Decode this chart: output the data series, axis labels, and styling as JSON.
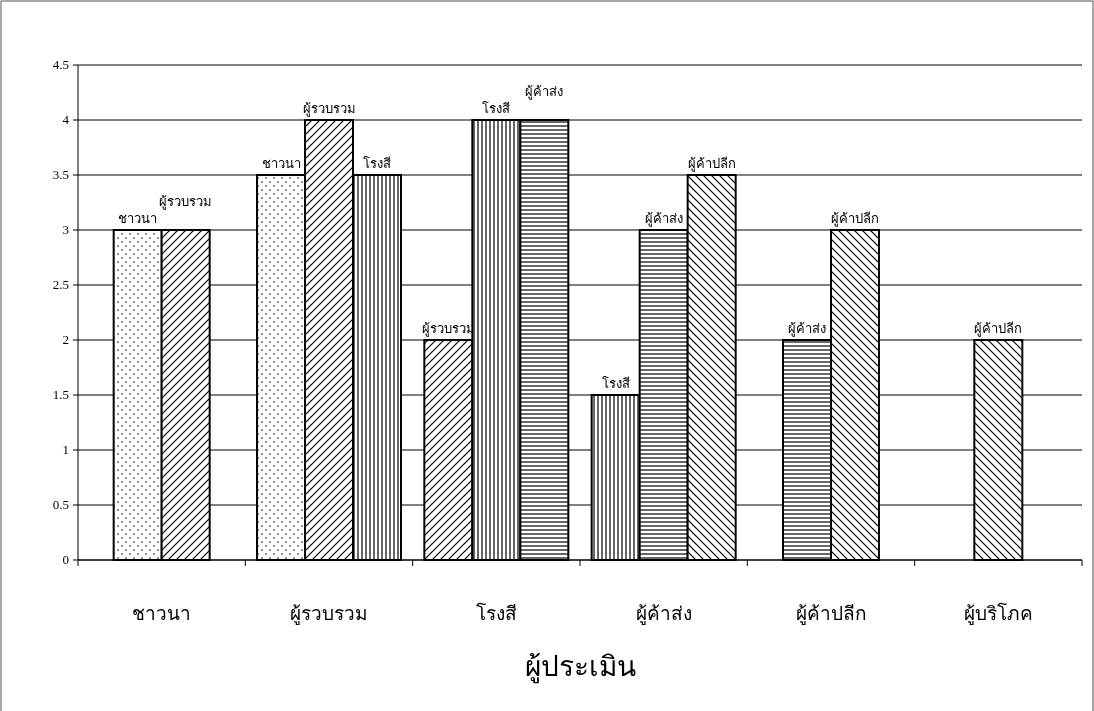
{
  "chart_data": {
    "type": "bar",
    "xlabel": "ผู้ประเมิน",
    "categories": [
      "ชาวนา",
      "ผู้รวบรวม",
      "โรงสี",
      "ผู้ค้าส่ง",
      "ผู้ค้าปลีก",
      "ผู้บริโภค"
    ],
    "series": [
      {
        "name": "ชาวนา",
        "color": "#000000",
        "values": [
          3,
          3.5,
          null,
          null,
          null,
          null
        ]
      },
      {
        "name": "ผู้รวบรวม",
        "color": "#000000",
        "values": [
          3,
          4,
          2,
          null,
          null,
          null
        ]
      },
      {
        "name": "โรงสี",
        "color": "#000000",
        "values": [
          null,
          3.5,
          4,
          1.5,
          null,
          null
        ]
      },
      {
        "name": "ผู้ค้าส่ง",
        "color": "#000000",
        "values": [
          null,
          null,
          4,
          3,
          2,
          null
        ]
      },
      {
        "name": "ผู้ค้าปลีก",
        "color": "#000000",
        "values": [
          null,
          null,
          null,
          3.5,
          3,
          2
        ]
      }
    ],
    "ylim": [
      0,
      4.5
    ],
    "yticks": [
      0,
      0.5,
      1,
      1.5,
      2,
      2.5,
      3,
      3.5,
      4,
      4.5
    ],
    "grid": "y"
  }
}
